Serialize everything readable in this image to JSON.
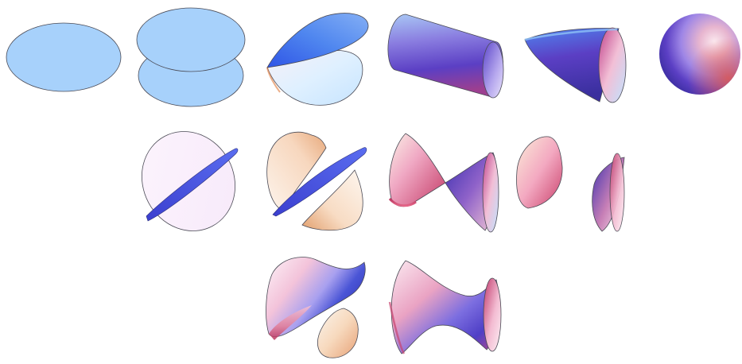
{
  "figure": {
    "background": "#ffffff",
    "palette": {
      "plane_fill": "#a7d1fb",
      "outline": "#4a4a55",
      "violet": "#5b3fc4",
      "indigo": "#3a2f9e",
      "blue": "#4f86ef",
      "rose": "#d23f6e",
      "pink": "#f2bfd6",
      "peach": "#f7d3b8",
      "cream": "#fdf5e7",
      "ice": "#d9efff",
      "lavender_white": "#fbf2fc"
    },
    "rows": [
      {
        "row": 1,
        "surfaces": [
          "single-plane",
          "parallel-planes",
          "intersecting-planes",
          "cylinder",
          "cone",
          "sphere"
        ]
      },
      {
        "row": 2,
        "surfaces": [
          "ellipse-with-line",
          "two-sheet-slices",
          "double-cone",
          "two-sheet-hyperboloid"
        ]
      },
      {
        "row": 3,
        "surfaces": [
          "hyperbolic-paraboloid",
          "one-sheet-hyperboloid"
        ]
      }
    ]
  }
}
